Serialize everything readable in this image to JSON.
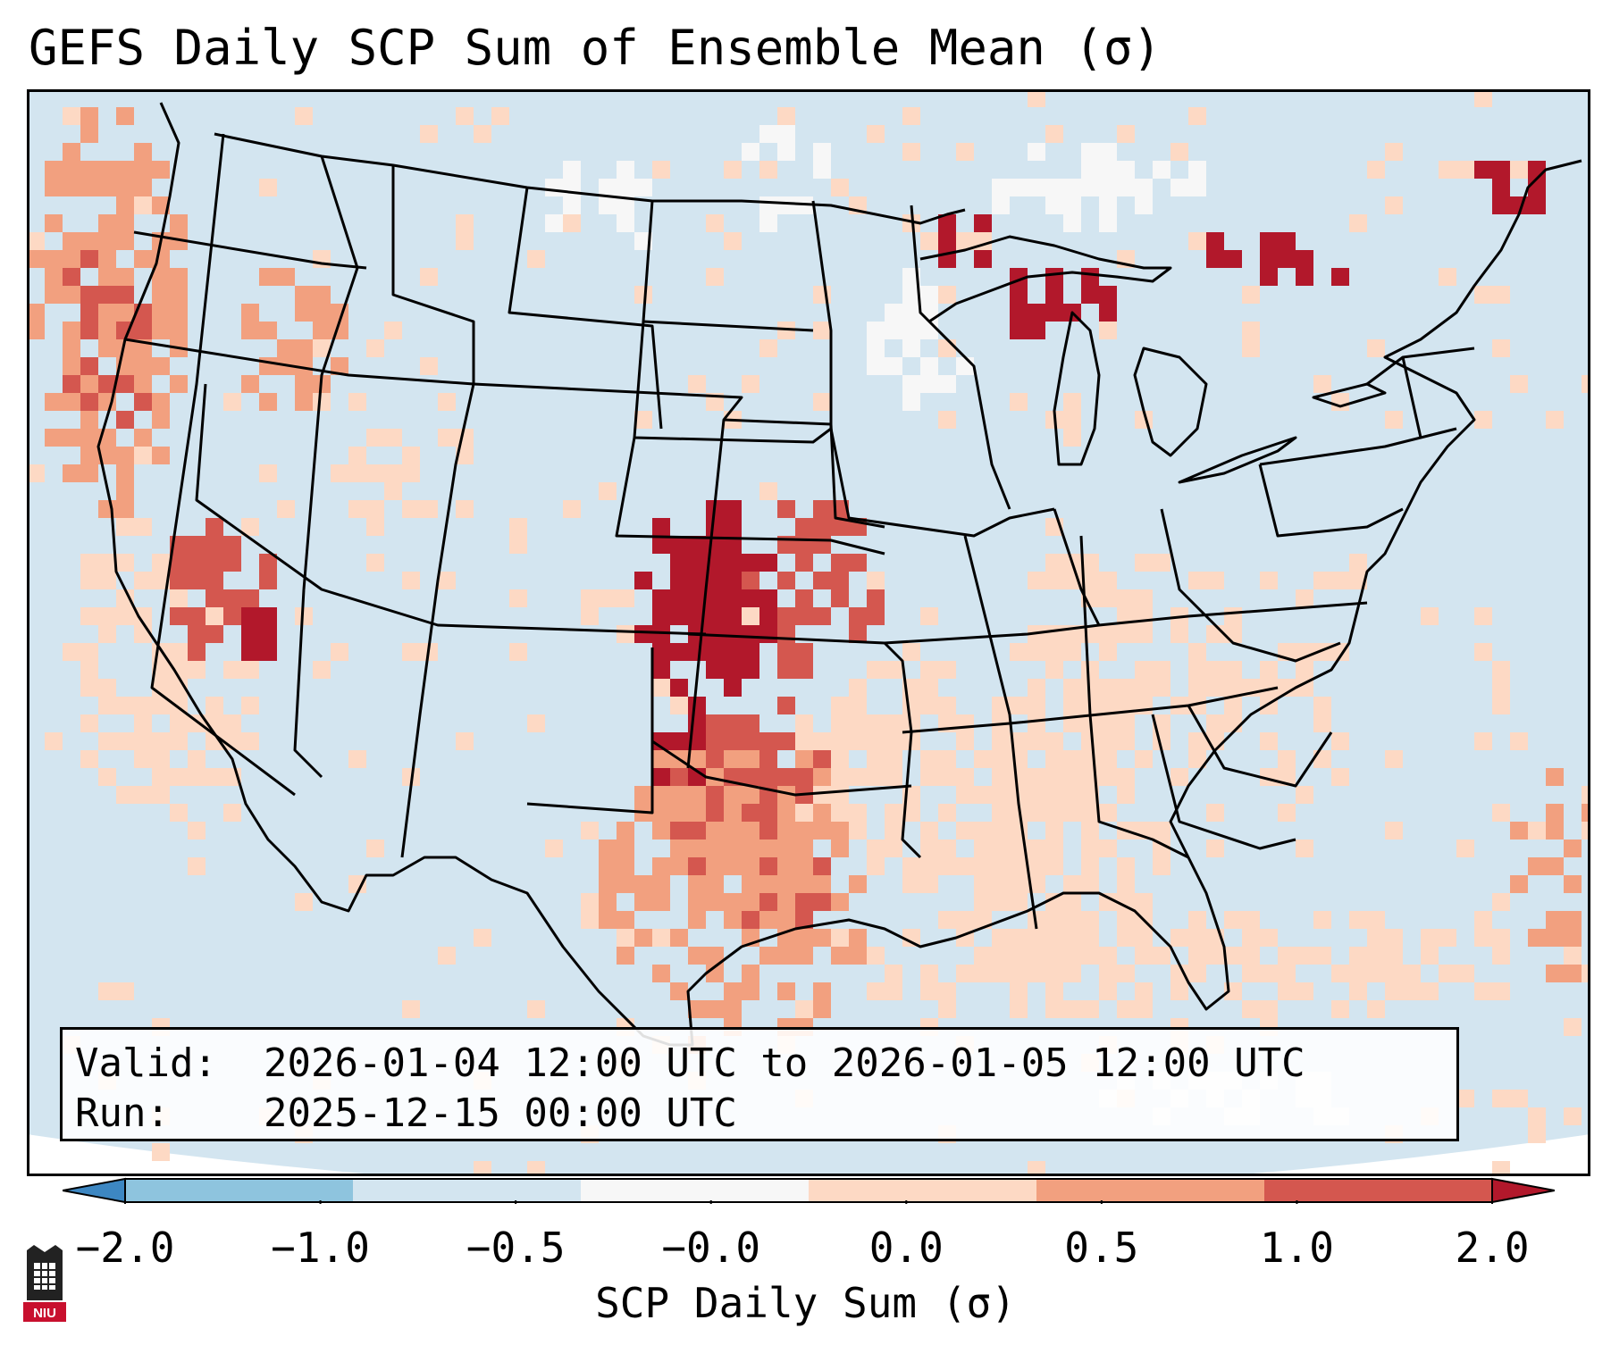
{
  "title": "GEFS Daily SCP Sum of Ensemble Mean (σ)",
  "info": {
    "valid_label": "Valid:",
    "valid_value": "2026-01-04 12:00 UTC to 2026-01-05 12:00 UTC",
    "run_label": "Run:",
    "run_value": "2025-12-15 00:00 UTC"
  },
  "colorbar": {
    "label": "SCP Daily Sum (σ)",
    "ticks": [
      "−2.0",
      "−1.0",
      "−0.5",
      "−0.0",
      "0.0",
      "0.5",
      "1.0",
      "2.0"
    ],
    "colors": [
      "#3d87c2",
      "#8ec4de",
      "#d3e5f0",
      "#f7f7f7",
      "#fdd9c4",
      "#f2a07f",
      "#d4574f",
      "#b2182b"
    ],
    "extend": "both"
  },
  "logo": {
    "text": "NIU",
    "color": "#c8102e"
  },
  "map": {
    "region": "Contiguous United States",
    "background_value_color": "#d3e5f0",
    "ocean_mask_color": "#ffffff",
    "state_line_color": "#000000"
  }
}
